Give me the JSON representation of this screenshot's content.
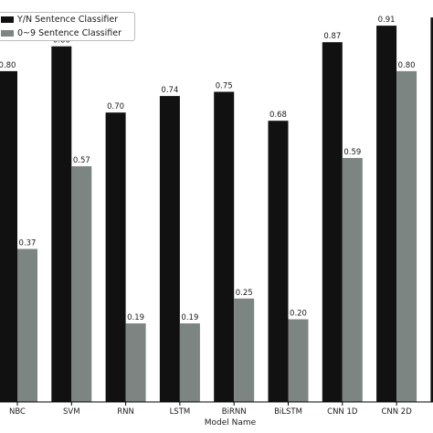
{
  "chart_data": {
    "type": "bar",
    "categories": [
      "NBC",
      "SVM",
      "RNN",
      "LSTM",
      "BiRNN",
      "BiLSTM",
      "CNN 1D",
      "CNN 2D",
      ""
    ],
    "series": [
      {
        "name": "Y/N Sentence Classifier",
        "color": "#111111",
        "values": [
          0.8,
          0.86,
          0.7,
          0.74,
          0.75,
          0.68,
          0.87,
          0.91,
          0.93
        ]
      },
      {
        "name": "0~9 Sentence Classifier",
        "color": "#7d8583",
        "values": [
          0.37,
          0.57,
          0.19,
          0.19,
          0.25,
          0.2,
          0.59,
          0.8,
          null
        ]
      }
    ],
    "data_labels": [
      [
        "0.80",
        "0.86",
        "0.70",
        "0.74",
        "0.75",
        "0.68",
        "0.87",
        "0.91",
        ""
      ],
      [
        "0.37",
        "0.57",
        "0.19",
        "0.19",
        "0.25",
        "0.20",
        "0.59",
        "0.80",
        ""
      ]
    ],
    "xlabel": "Model Name",
    "ylim": [
      0,
      0.95
    ],
    "grid": false,
    "legend_position": "top-left"
  }
}
